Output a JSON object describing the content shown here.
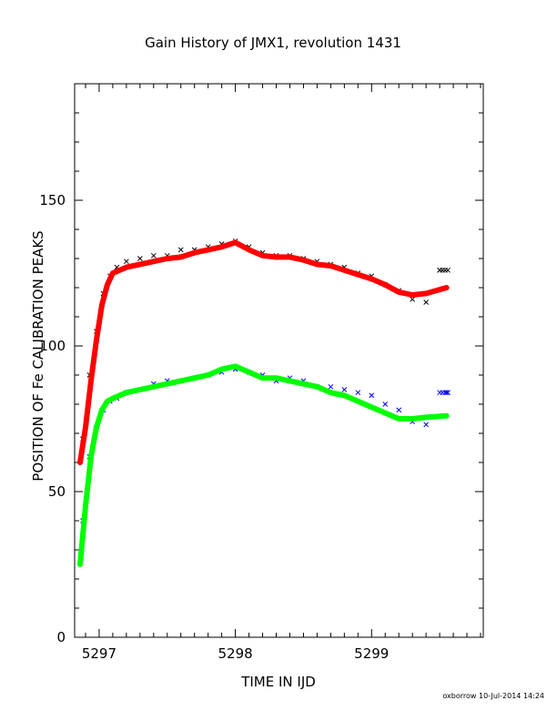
{
  "chart_data": {
    "type": "scatter",
    "title": "Gain History of JMX1, revolution 1431",
    "xlabel": "TIME IN IJD",
    "ylabel": "POSITION OF Fe CALIBRATION PEAKS",
    "xlim": [
      5296.82,
      5299.82
    ],
    "ylim": [
      0,
      190
    ],
    "x_ticks": [
      5297,
      5298,
      5299
    ],
    "y_ticks": [
      0,
      50,
      100,
      150
    ],
    "x_tick_labels": [
      "5297",
      "5298",
      "5299"
    ],
    "y_tick_labels": [
      "0",
      "50",
      "100",
      "150"
    ],
    "grid": false,
    "legend": "none",
    "footer": "oxborrow 10-Jul-2014 14:24",
    "series": [
      {
        "marker": "cross",
        "color": "#000000",
        "x": [
          5296.88,
          5296.93,
          5296.98,
          5297.03,
          5297.08,
          5297.13,
          5297.2,
          5297.3,
          5297.4,
          5297.5,
          5297.6,
          5297.7,
          5297.8,
          5297.9,
          5298.0,
          5298.1,
          5298.2,
          5298.3,
          5298.4,
          5298.5,
          5298.6,
          5298.7,
          5298.8,
          5298.9,
          5299.0,
          5299.1,
          5299.2,
          5299.3,
          5299.4,
          5299.5
        ],
        "y": [
          68,
          90,
          105,
          118,
          124,
          127,
          129,
          130,
          131,
          131,
          133,
          133,
          134,
          135,
          136,
          134,
          132,
          131,
          131,
          130,
          129,
          128,
          127,
          125,
          124,
          121,
          119,
          116,
          115,
          126
        ]
      },
      {
        "marker": "line-plus",
        "color": "#ff0000",
        "x": [
          5296.86,
          5296.9,
          5296.94,
          5296.98,
          5297.02,
          5297.06,
          5297.1,
          5297.2,
          5297.3,
          5297.4,
          5297.5,
          5297.6,
          5297.7,
          5297.8,
          5297.9,
          5298.0,
          5298.1,
          5298.2,
          5298.3,
          5298.4,
          5298.5,
          5298.6,
          5298.7,
          5298.8,
          5298.9,
          5299.0,
          5299.1,
          5299.2,
          5299.3,
          5299.4,
          5299.55
        ],
        "y": [
          60,
          72,
          88,
          102,
          114,
          121,
          125,
          127,
          128,
          129,
          130,
          130.5,
          132,
          133,
          134,
          135.5,
          133,
          131,
          130.5,
          130.5,
          129.5,
          128,
          127.5,
          126,
          124.5,
          123,
          121,
          118.5,
          117.5,
          118,
          120
        ]
      },
      {
        "marker": "cross",
        "color": "#0000ff",
        "x": [
          5296.88,
          5296.93,
          5296.98,
          5297.03,
          5297.08,
          5297.13,
          5297.2,
          5297.3,
          5297.4,
          5297.5,
          5297.6,
          5297.7,
          5297.8,
          5297.9,
          5298.0,
          5298.1,
          5298.2,
          5298.3,
          5298.4,
          5298.5,
          5298.6,
          5298.7,
          5298.8,
          5298.9,
          5299.0,
          5299.1,
          5299.2,
          5299.3,
          5299.4,
          5299.55
        ],
        "y": [
          40,
          62,
          72,
          78,
          81,
          82,
          84,
          85,
          87,
          88,
          88,
          89,
          90,
          91,
          92,
          91,
          90,
          88,
          89,
          88,
          86,
          86,
          85,
          84,
          83,
          80,
          78,
          74,
          73,
          84
        ]
      },
      {
        "marker": "line-plus",
        "color": "#00ff00",
        "x": [
          5296.86,
          5296.9,
          5296.94,
          5296.98,
          5297.02,
          5297.06,
          5297.1,
          5297.2,
          5297.3,
          5297.4,
          5297.5,
          5297.6,
          5297.7,
          5297.8,
          5297.9,
          5298.0,
          5298.1,
          5298.2,
          5298.3,
          5298.4,
          5298.5,
          5298.6,
          5298.7,
          5298.8,
          5298.9,
          5299.0,
          5299.1,
          5299.2,
          5299.3,
          5299.4,
          5299.55
        ],
        "y": [
          25,
          45,
          62,
          72,
          78,
          81,
          82,
          84,
          85,
          86,
          87,
          88,
          89,
          90,
          92,
          93,
          91,
          89,
          89,
          88,
          87,
          86,
          84,
          83,
          81,
          79,
          77,
          75,
          75,
          75.5,
          76
        ]
      },
      {
        "marker": "cross",
        "color": "#000000",
        "x": [
          5299.5,
          5299.52,
          5299.54,
          5299.56
        ],
        "y": [
          126,
          126,
          126,
          126
        ]
      },
      {
        "marker": "cross",
        "color": "#0000ff",
        "x": [
          5299.5,
          5299.52,
          5299.54,
          5299.56
        ],
        "y": [
          84,
          84,
          84,
          84
        ]
      }
    ]
  }
}
